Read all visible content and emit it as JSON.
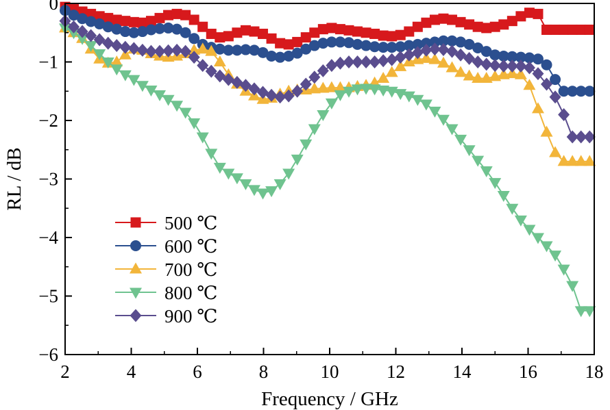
{
  "chart_data": {
    "type": "line",
    "title": "",
    "xlabel": "Frequency / GHz",
    "ylabel": "RL / dB",
    "xlim": [
      2,
      18
    ],
    "ylim": [
      -6,
      0
    ],
    "xticks": [
      "2",
      "4",
      "6",
      "8",
      "10",
      "12",
      "14",
      "16",
      "18"
    ],
    "yticks": [
      "0",
      "−1",
      "−2",
      "−3",
      "−4",
      "−5",
      "−6"
    ],
    "grid": false,
    "legend_position": "bottom-left",
    "x": [
      2.0,
      2.26,
      2.52,
      2.78,
      3.04,
      3.3,
      3.56,
      3.82,
      4.08,
      4.34,
      4.6,
      4.86,
      5.12,
      5.38,
      5.64,
      5.9,
      6.16,
      6.42,
      6.68,
      6.94,
      7.2,
      7.46,
      7.72,
      7.98,
      8.24,
      8.5,
      8.76,
      9.02,
      9.28,
      9.54,
      9.8,
      10.06,
      10.32,
      10.58,
      10.84,
      11.1,
      11.36,
      11.62,
      11.88,
      12.14,
      12.4,
      12.66,
      12.92,
      13.18,
      13.44,
      13.7,
      13.96,
      14.22,
      14.48,
      14.74,
      15.0,
      15.26,
      15.52,
      15.78,
      16.04,
      16.3,
      16.56,
      16.82,
      17.08,
      17.34,
      17.6,
      17.86
    ],
    "series": [
      {
        "name": "500 ℃",
        "marker": "square",
        "color": "#d7191c",
        "values": [
          -0.06,
          -0.1,
          -0.14,
          -0.18,
          -0.22,
          -0.25,
          -0.28,
          -0.3,
          -0.32,
          -0.33,
          -0.3,
          -0.25,
          -0.2,
          -0.18,
          -0.2,
          -0.28,
          -0.4,
          -0.52,
          -0.58,
          -0.56,
          -0.5,
          -0.46,
          -0.48,
          -0.52,
          -0.6,
          -0.68,
          -0.7,
          -0.66,
          -0.58,
          -0.5,
          -0.44,
          -0.42,
          -0.44,
          -0.46,
          -0.48,
          -0.5,
          -0.52,
          -0.55,
          -0.56,
          -0.54,
          -0.48,
          -0.4,
          -0.33,
          -0.28,
          -0.26,
          -0.28,
          -0.32,
          -0.36,
          -0.4,
          -0.42,
          -0.4,
          -0.36,
          -0.3,
          -0.22,
          -0.16,
          -0.18,
          -0.45,
          -0.45,
          -0.45,
          -0.45,
          -0.45,
          -0.45
        ]
      },
      {
        "name": "600 ℃",
        "marker": "circle",
        "color": "#2b4f8f",
        "values": [
          -0.12,
          -0.2,
          -0.26,
          -0.31,
          -0.35,
          -0.4,
          -0.44,
          -0.48,
          -0.5,
          -0.48,
          -0.45,
          -0.43,
          -0.42,
          -0.44,
          -0.5,
          -0.6,
          -0.7,
          -0.75,
          -0.78,
          -0.8,
          -0.8,
          -0.79,
          -0.8,
          -0.84,
          -0.9,
          -0.92,
          -0.9,
          -0.85,
          -0.78,
          -0.72,
          -0.68,
          -0.66,
          -0.66,
          -0.67,
          -0.7,
          -0.72,
          -0.74,
          -0.75,
          -0.75,
          -0.74,
          -0.72,
          -0.7,
          -0.68,
          -0.66,
          -0.64,
          -0.64,
          -0.66,
          -0.7,
          -0.76,
          -0.82,
          -0.88,
          -0.9,
          -0.91,
          -0.92,
          -0.93,
          -0.95,
          -1.05,
          -1.3,
          -1.5,
          -1.5,
          -1.5,
          -1.5
        ]
      },
      {
        "name": "700 ℃",
        "marker": "triangle-up",
        "color": "#f2b53a",
        "values": [
          -0.42,
          -0.5,
          -0.6,
          -0.78,
          -0.95,
          -1.02,
          -1.0,
          -0.88,
          -0.78,
          -0.8,
          -0.86,
          -0.9,
          -0.92,
          -0.9,
          -0.86,
          -0.8,
          -0.78,
          -0.82,
          -1.0,
          -1.22,
          -1.38,
          -1.5,
          -1.58,
          -1.64,
          -1.62,
          -1.55,
          -1.5,
          -1.48,
          -1.48,
          -1.46,
          -1.45,
          -1.44,
          -1.44,
          -1.44,
          -1.42,
          -1.4,
          -1.36,
          -1.28,
          -1.18,
          -1.08,
          -1.0,
          -0.96,
          -0.94,
          -0.96,
          -1.02,
          -1.1,
          -1.18,
          -1.24,
          -1.28,
          -1.28,
          -1.25,
          -1.22,
          -1.2,
          -1.22,
          -1.4,
          -1.8,
          -2.2,
          -2.55,
          -2.7,
          -2.7,
          -2.7,
          -2.7
        ]
      },
      {
        "name": "800 ℃",
        "marker": "triangle-down",
        "color": "#6fc38f",
        "values": [
          -0.42,
          -0.5,
          -0.6,
          -0.72,
          -0.86,
          -1.0,
          -1.12,
          -1.22,
          -1.3,
          -1.4,
          -1.48,
          -1.56,
          -1.64,
          -1.74,
          -1.86,
          -2.04,
          -2.28,
          -2.56,
          -2.8,
          -2.9,
          -2.98,
          -3.08,
          -3.18,
          -3.24,
          -3.2,
          -3.08,
          -2.9,
          -2.66,
          -2.4,
          -2.14,
          -1.9,
          -1.7,
          -1.56,
          -1.5,
          -1.46,
          -1.45,
          -1.46,
          -1.48,
          -1.5,
          -1.54,
          -1.58,
          -1.64,
          -1.72,
          -1.84,
          -1.98,
          -2.14,
          -2.32,
          -2.5,
          -2.68,
          -2.86,
          -3.06,
          -3.28,
          -3.5,
          -3.7,
          -3.86,
          -4.0,
          -4.14,
          -4.3,
          -4.54,
          -4.82,
          -5.25,
          -5.25
        ]
      },
      {
        "name": "900 ℃",
        "marker": "diamond",
        "color": "#5a4d8e",
        "values": [
          -0.3,
          -0.4,
          -0.48,
          -0.55,
          -0.62,
          -0.68,
          -0.72,
          -0.75,
          -0.77,
          -0.8,
          -0.82,
          -0.82,
          -0.81,
          -0.8,
          -0.82,
          -0.92,
          -1.06,
          -1.16,
          -1.24,
          -1.3,
          -1.35,
          -1.4,
          -1.46,
          -1.52,
          -1.57,
          -1.6,
          -1.58,
          -1.5,
          -1.38,
          -1.26,
          -1.15,
          -1.06,
          -1.02,
          -1.0,
          -1.0,
          -1.0,
          -1.0,
          -0.98,
          -0.96,
          -0.92,
          -0.88,
          -0.84,
          -0.8,
          -0.78,
          -0.79,
          -0.82,
          -0.88,
          -0.94,
          -1.0,
          -1.04,
          -1.06,
          -1.07,
          -1.07,
          -1.07,
          -1.1,
          -1.2,
          -1.38,
          -1.6,
          -1.9,
          -2.28,
          -2.28,
          -2.28
        ]
      }
    ]
  }
}
